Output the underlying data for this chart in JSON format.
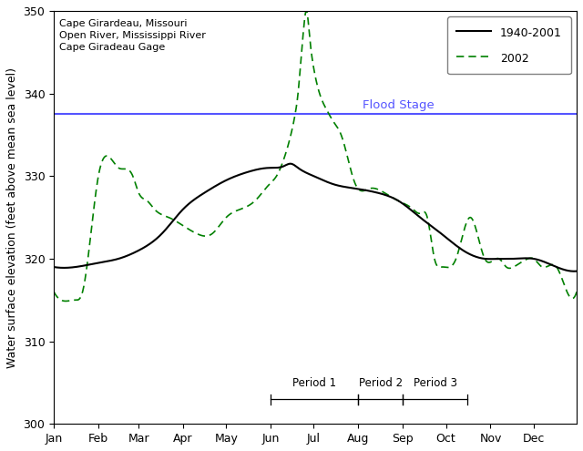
{
  "ylabel": "Water surface elevation (feet above mean sea level)",
  "ylim": [
    300,
    350
  ],
  "yticks": [
    300,
    310,
    320,
    330,
    340,
    350
  ],
  "flood_stage": 337.5,
  "flood_label": "Flood Stage",
  "annotation_text": "Cape Girardeau, Missouri\nOpen River, Mississippi River\nCape Giradeau Gage",
  "legend_labels": [
    "1940-2001",
    "2002"
  ],
  "line1_color": "#000000",
  "line2_color": "#008000",
  "flood_color": "#5555ff",
  "months": [
    "Jan",
    "Feb",
    "Mar",
    "Apr",
    "May",
    "Jun",
    "Jul",
    "Aug",
    "Sep",
    "Oct",
    "Nov",
    "Dec"
  ],
  "hist_knots_x": [
    0,
    15,
    31,
    45,
    59,
    75,
    90,
    105,
    120,
    135,
    150,
    160,
    165,
    170,
    181,
    195,
    210,
    225,
    240,
    255,
    270,
    285,
    300,
    310,
    320,
    334,
    350,
    364
  ],
  "hist_knots_y": [
    319,
    319,
    319.5,
    320,
    321,
    323,
    326,
    328,
    329.5,
    330.5,
    331,
    331.2,
    331.5,
    331,
    330,
    329,
    328.5,
    328,
    327,
    325,
    323,
    321,
    320,
    320,
    320,
    320,
    319,
    318.5
  ],
  "y2002_knots_x": [
    0,
    5,
    15,
    20,
    31,
    45,
    55,
    59,
    65,
    70,
    80,
    90,
    100,
    110,
    120,
    130,
    140,
    150,
    155,
    160,
    165,
    168,
    170,
    172,
    174,
    176,
    178,
    181,
    185,
    190,
    195,
    200,
    210,
    220,
    230,
    240,
    250,
    255,
    260,
    265,
    270,
    280,
    290,
    300,
    310,
    315,
    320,
    330,
    334,
    340,
    350,
    355,
    364
  ],
  "y2002_knots_y": [
    316,
    315,
    315,
    316,
    330,
    331,
    330,
    328,
    327,
    326,
    325,
    324,
    323,
    323,
    325,
    326,
    327,
    329,
    330,
    332,
    335,
    337.5,
    340,
    344,
    348,
    350,
    347,
    343,
    340,
    338,
    336.5,
    335,
    329,
    328.5,
    328,
    327,
    326,
    325.5,
    325,
    320,
    319,
    320,
    325,
    320,
    320,
    319,
    319,
    320,
    320,
    319,
    319,
    317,
    316
  ],
  "period_defs": [
    [
      "Period 1",
      151,
      212
    ],
    [
      "Period 2",
      212,
      243
    ],
    [
      "Period 3",
      243,
      288
    ]
  ]
}
